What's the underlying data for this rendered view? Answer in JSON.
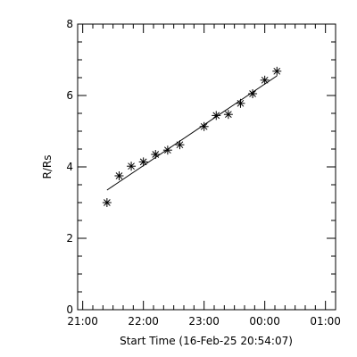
{
  "chart_data": {
    "type": "scatter",
    "title": "",
    "xlabel": "Start Time (16-Feb-25 20:54:07)",
    "ylabel": "R/Rs",
    "x_ticks": [
      "21:00",
      "22:00",
      "23:00",
      "00:00",
      "01:00"
    ],
    "x_tick_minutes": [
      0,
      60,
      120,
      180,
      240
    ],
    "y_ticks": [
      "0",
      "2",
      "4",
      "6",
      "8"
    ],
    "y_tick_values": [
      0,
      2,
      4,
      6,
      8
    ],
    "xlim_minutes": [
      -5,
      250
    ],
    "ylim": [
      0,
      8
    ],
    "grid": false,
    "points": [
      {
        "x": 24,
        "y": 3.0
      },
      {
        "x": 36,
        "y": 3.75
      },
      {
        "x": 48,
        "y": 4.02
      },
      {
        "x": 60,
        "y": 4.14
      },
      {
        "x": 72,
        "y": 4.35
      },
      {
        "x": 84,
        "y": 4.47
      },
      {
        "x": 96,
        "y": 4.62
      },
      {
        "x": 120,
        "y": 5.13
      },
      {
        "x": 132,
        "y": 5.44
      },
      {
        "x": 144,
        "y": 5.47
      },
      {
        "x": 156,
        "y": 5.78
      },
      {
        "x": 168,
        "y": 6.05
      },
      {
        "x": 180,
        "y": 6.43
      },
      {
        "x": 192,
        "y": 6.68
      }
    ],
    "fit_line": {
      "x": [
        24,
        192
      ],
      "y": [
        3.35,
        6.55
      ]
    }
  }
}
